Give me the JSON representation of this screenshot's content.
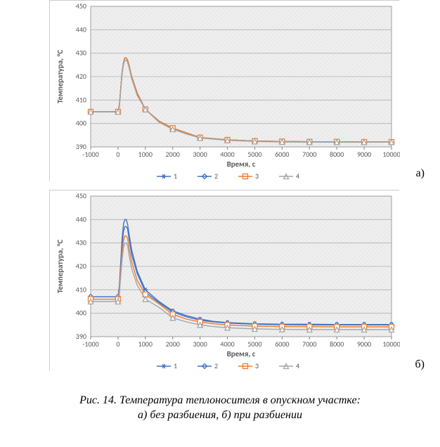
{
  "figure": {
    "caption_line1": "Рис. 14. Температура теплоносителя в опускном участке:",
    "caption_line2": "а) без разбиения, б) при разбиении",
    "panel_a_label": "а)",
    "panel_b_label": "б)",
    "xlabel": "Время, с",
    "ylabel": "Температура, °С",
    "x_ticks": [
      -1000,
      0,
      1000,
      2000,
      3000,
      4000,
      5000,
      6000,
      7000,
      8000,
      9000,
      10000
    ],
    "y_ticks": [
      390,
      400,
      410,
      420,
      430,
      440,
      450
    ],
    "xlim": [
      -1000,
      10000
    ],
    "ylim": [
      390,
      450
    ],
    "grid_color": "#b0b0b0",
    "plot_bg": "#efefef",
    "tick_fontsize": 10,
    "label_fontsize": 11,
    "series": [
      {
        "name": "1",
        "color": "#4472c4",
        "marker": "star"
      },
      {
        "name": "2",
        "color": "#4472c4",
        "marker": "diamond-open"
      },
      {
        "name": "3",
        "color": "#ed7d31",
        "marker": "square-open"
      },
      {
        "name": "4",
        "color": "#a6a6a6",
        "marker": "triangle-open"
      }
    ],
    "chart_a": {
      "type": "line-marker",
      "data": {
        "x": [
          -1000,
          -500,
          0,
          50,
          100,
          150,
          200,
          250,
          300,
          350,
          400,
          500,
          700,
          1000,
          1500,
          2000,
          2500,
          3000,
          3500,
          4000,
          5000,
          6000,
          7000,
          8000,
          9000,
          10000
        ],
        "s1": [
          405,
          405,
          405,
          408,
          415,
          422,
          426,
          428,
          428,
          427,
          425,
          420,
          413,
          406,
          401,
          398,
          396,
          394,
          393.5,
          393,
          392.5,
          392.3,
          392.2,
          392.2,
          392.1,
          392.1
        ],
        "s2": [
          405,
          405,
          405,
          408,
          415,
          422,
          426,
          428,
          428,
          427,
          425,
          420,
          413,
          406,
          401,
          398,
          396,
          394,
          393.5,
          393,
          392.5,
          392.3,
          392.2,
          392.2,
          392.1,
          392.1
        ],
        "s3": [
          405,
          405,
          405,
          408,
          415,
          422,
          426,
          428,
          428,
          427,
          425,
          420,
          413,
          406,
          401,
          398,
          396,
          394,
          393.5,
          393,
          392.5,
          392.3,
          392.2,
          392.2,
          392.1,
          392.1
        ],
        "s4": [
          405,
          405,
          405,
          407,
          414,
          421,
          425,
          427,
          427,
          426,
          424,
          419,
          412,
          406,
          400.5,
          397.5,
          395.5,
          393.8,
          393.3,
          392.8,
          392.3,
          392.1,
          392,
          392,
          392,
          392
        ]
      }
    },
    "chart_b": {
      "type": "line-marker",
      "data": {
        "x": [
          -1000,
          -500,
          0,
          50,
          100,
          150,
          200,
          250,
          300,
          350,
          400,
          500,
          700,
          1000,
          1500,
          2000,
          2500,
          3000,
          3500,
          4000,
          5000,
          6000,
          7000,
          8000,
          9000,
          10000
        ],
        "s1": [
          407,
          407,
          407,
          412,
          422,
          432,
          438,
          440,
          440,
          438,
          434,
          427,
          418,
          410,
          405,
          401,
          399,
          397.5,
          396.5,
          396,
          395.5,
          395.3,
          395.3,
          395.2,
          395.2,
          395.2
        ],
        "s2": [
          407,
          407,
          407,
          411,
          420,
          429,
          435,
          437,
          437,
          436,
          432,
          425,
          417,
          409,
          404.5,
          400.5,
          398.5,
          397,
          396.3,
          395.8,
          395.3,
          395.1,
          395,
          395,
          395,
          395
        ],
        "s3": [
          406,
          406,
          406,
          410,
          418,
          426,
          431,
          433,
          433,
          432,
          428,
          422,
          414,
          408,
          404,
          399.5,
          397.5,
          396.3,
          395.5,
          395,
          394.5,
          394.3,
          394.3,
          394.2,
          394.2,
          394.2
        ],
        "s4": [
          405,
          405,
          405,
          408,
          416,
          423,
          428,
          430,
          430,
          429,
          425,
          419,
          412,
          406,
          402.5,
          398,
          396.3,
          395,
          394.3,
          393.8,
          393.3,
          393.1,
          393,
          393,
          393,
          393
        ]
      }
    },
    "marker_main_x": [
      -1000,
      0,
      1000,
      2000,
      3000,
      4000,
      5000,
      6000,
      7000,
      8000,
      9000,
      10000
    ]
  }
}
